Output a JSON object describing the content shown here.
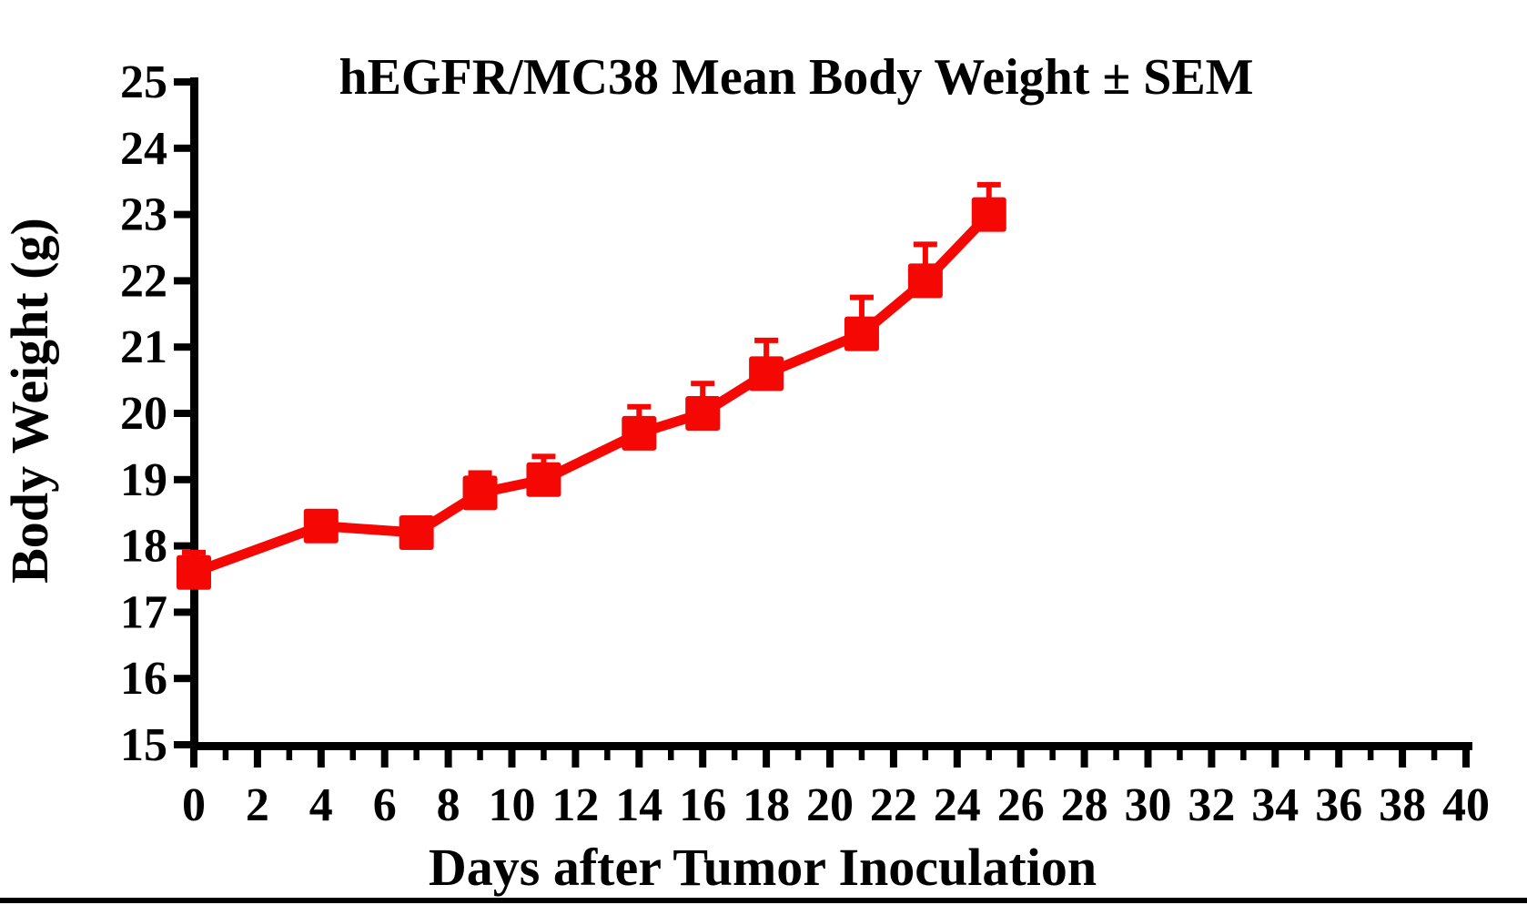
{
  "page": {
    "background": "#ffffff",
    "bottom_rule_color": "#000000"
  },
  "chart_data": {
    "type": "line",
    "title": "hEGFR/MC38 Mean Body Weight ± SEM",
    "xlabel": "Days after Tumor Inoculation",
    "ylabel": "Body Weight (g)",
    "xlim": [
      0,
      40
    ],
    "ylim": [
      15,
      25
    ],
    "x_major_tick_step": 2,
    "x_minor_tick_step": 1,
    "y_tick_step": 1,
    "x_tick_labels": [
      "0",
      "2",
      "4",
      "6",
      "8",
      "10",
      "12",
      "14",
      "16",
      "18",
      "20",
      "22",
      "24",
      "26",
      "28",
      "30",
      "32",
      "34",
      "36",
      "38",
      "40"
    ],
    "y_tick_labels": [
      "15",
      "16",
      "17",
      "18",
      "19",
      "20",
      "21",
      "22",
      "23",
      "24",
      "25"
    ],
    "grid": false,
    "legend_position": "none",
    "error_bars": "upper-sem-only",
    "axis_color": "#000000",
    "series": [
      {
        "name": "hEGFR/MC38 mean body weight",
        "color": "#f50803",
        "marker": "square",
        "x": [
          0,
          4,
          7,
          9,
          11,
          14,
          16,
          18,
          21,
          23,
          25
        ],
        "y": [
          17.6,
          18.3,
          18.2,
          18.8,
          19.0,
          19.7,
          20.0,
          20.6,
          21.2,
          22.0,
          23.0
        ],
        "sem": [
          0.3,
          0.2,
          0.2,
          0.3,
          0.35,
          0.4,
          0.45,
          0.5,
          0.55,
          0.55,
          0.45
        ]
      }
    ]
  }
}
